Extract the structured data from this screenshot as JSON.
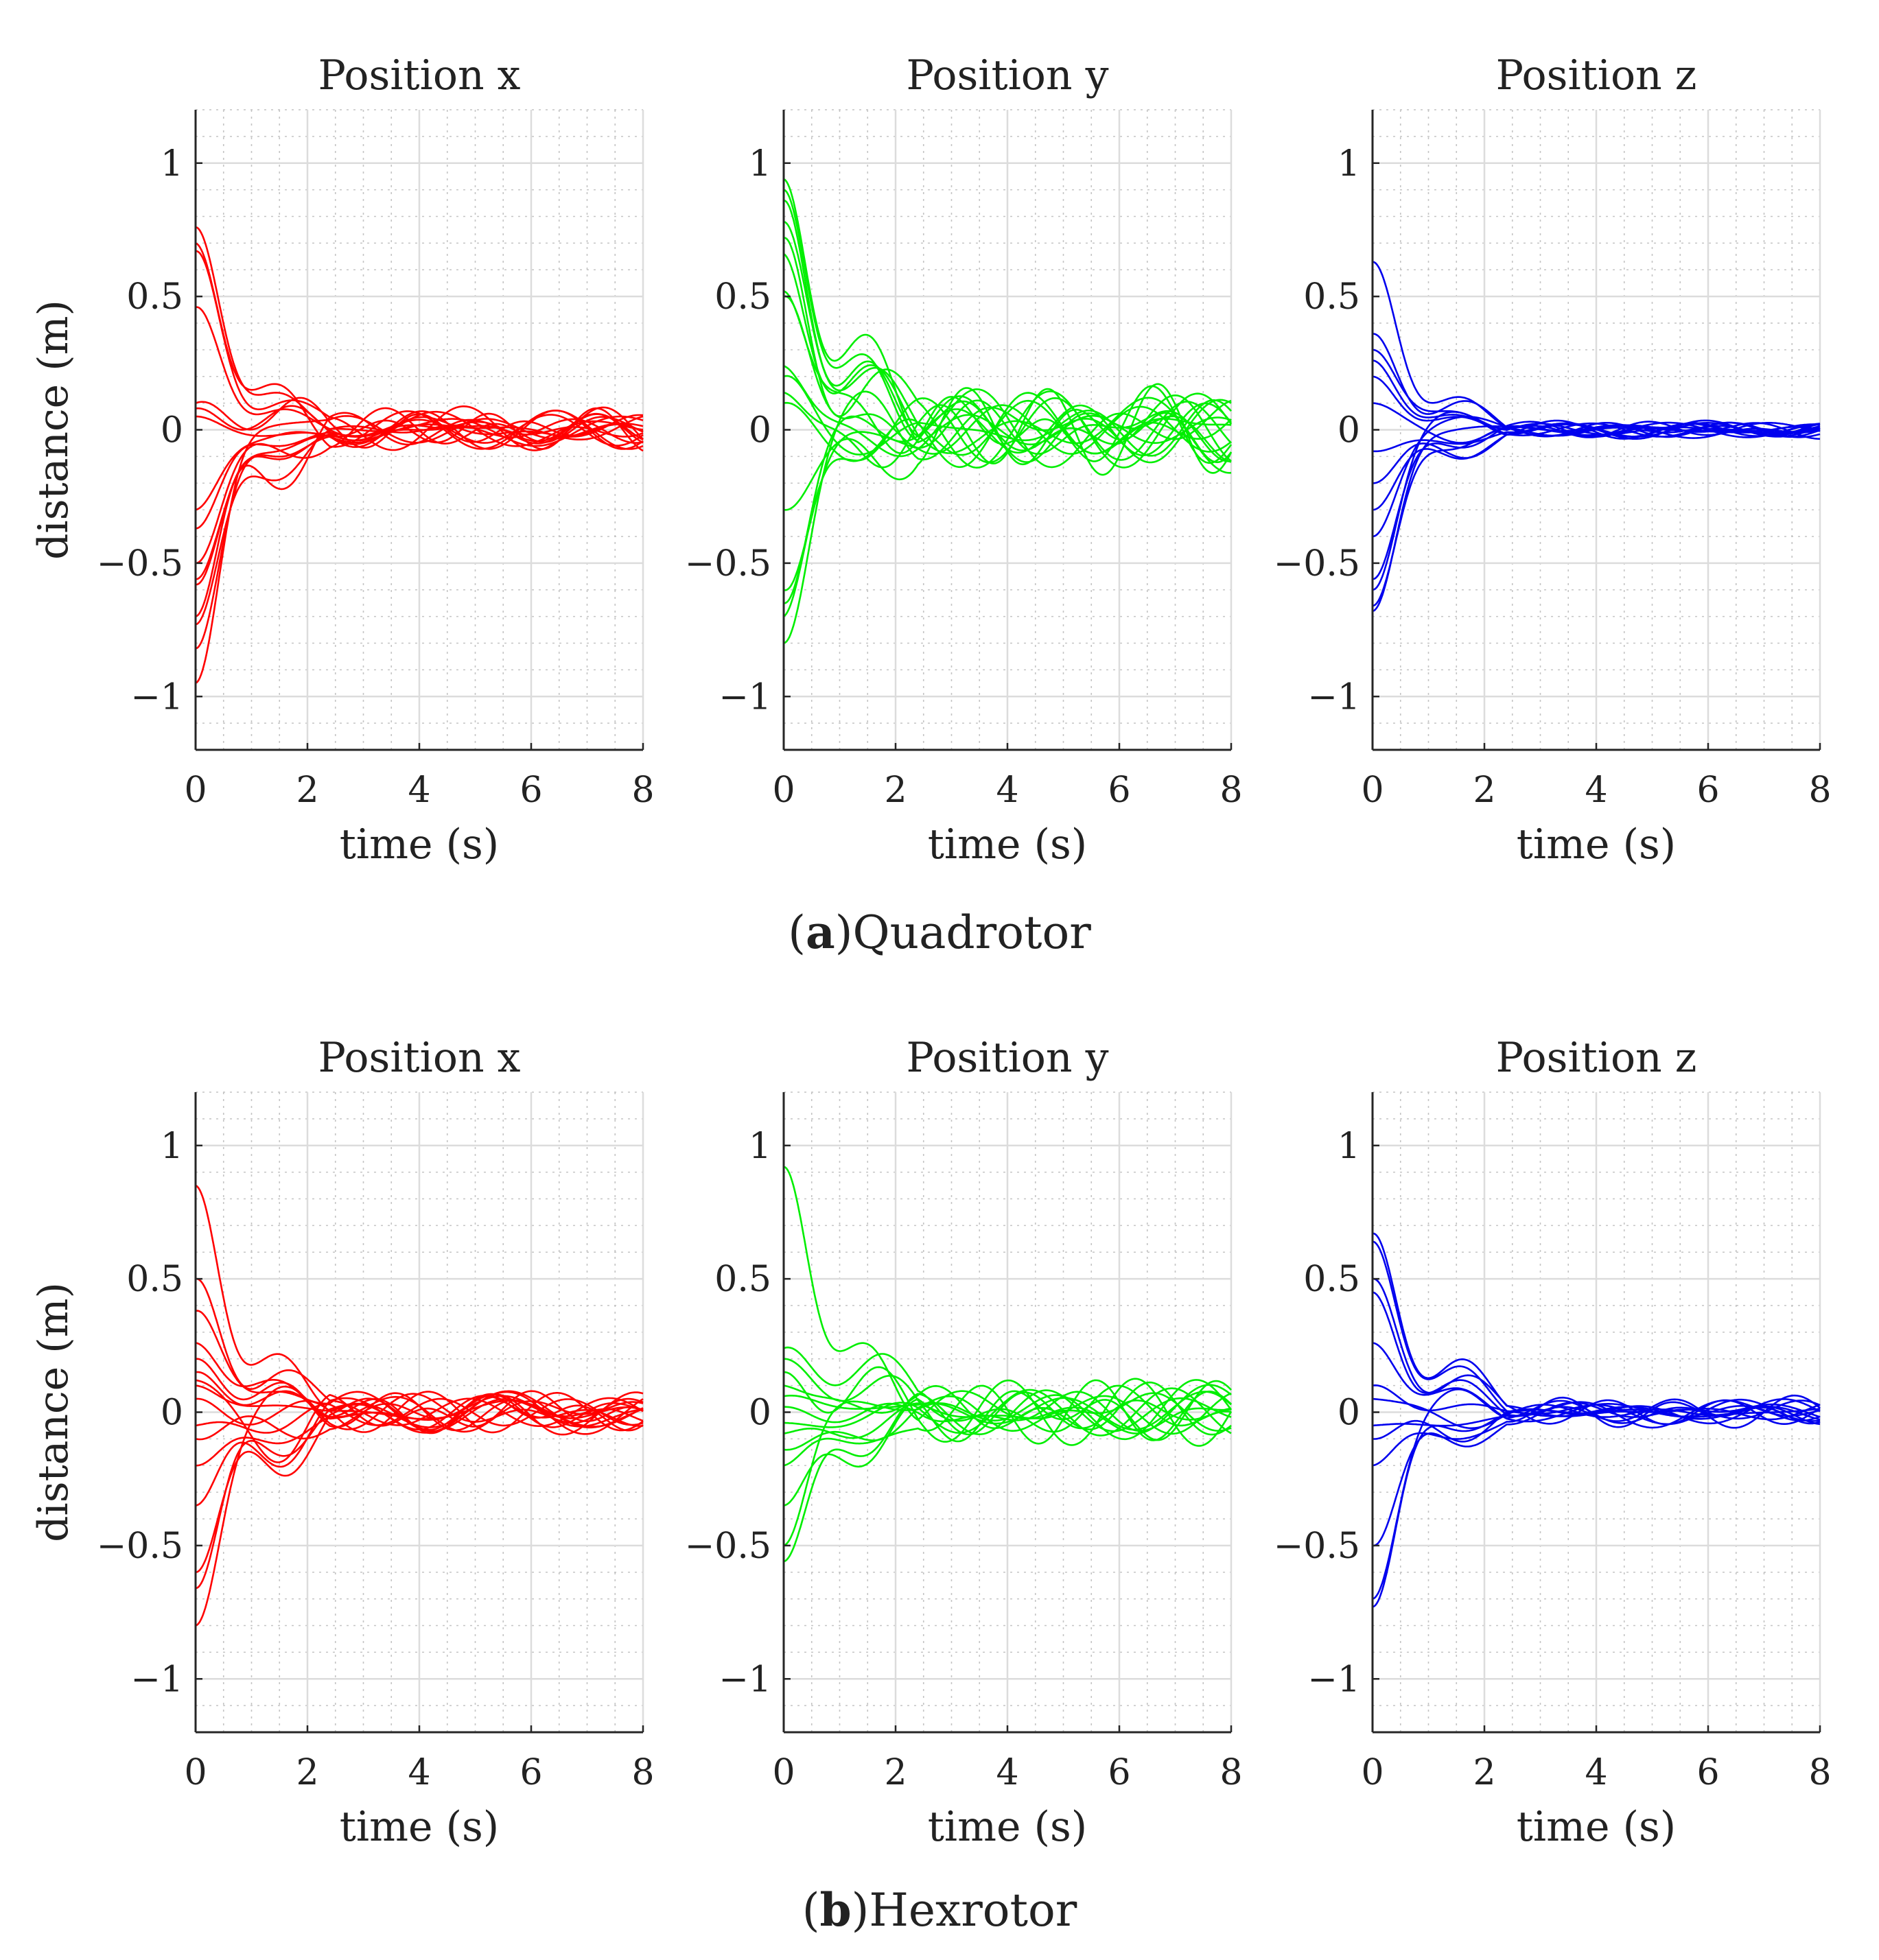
{
  "figure": {
    "captions": [
      {
        "letter": "a",
        "prefix": "(",
        "close": ")",
        "label": "Quadrotor"
      },
      {
        "letter": "b",
        "prefix": "(",
        "close": ")",
        "label": "Hexrotor"
      }
    ]
  },
  "chart_data": [
    {
      "group": "Quadrotor",
      "type": "line",
      "title": "Position x",
      "xlabel": "time (s)",
      "ylabel": "distance (m)",
      "xlim": [
        0,
        8
      ],
      "ylim": [
        -1.2,
        1.2
      ],
      "xticks": [
        0,
        2,
        4,
        6,
        8
      ],
      "xtick_labels": [
        "0",
        "2",
        "4",
        "6",
        "8"
      ],
      "yticks": [
        -1,
        -0.5,
        0,
        0.5,
        1
      ],
      "ytick_labels": [
        "−1",
        "−0.5",
        "0",
        "0.5",
        "1"
      ],
      "grid": "major and minor",
      "color": "#ff0000",
      "initial_values": [
        0.76,
        0.7,
        0.67,
        0.46,
        0.1,
        0.08,
        -0.3,
        -0.37,
        -0.5,
        -0.56,
        -0.58,
        -0.7,
        -0.73,
        -0.82,
        -0.95,
        0.05
      ],
      "overshoot_values": [
        0.18,
        0.16,
        0.14,
        0.12,
        0.1,
        0.06,
        -0.04,
        -0.08,
        -0.12,
        -0.15,
        -0.18,
        -0.2,
        -0.25,
        -0.14,
        0.08,
        -0.06
      ],
      "steady_band": 0.07
    },
    {
      "group": "Quadrotor",
      "type": "line",
      "title": "Position y",
      "xlabel": "time (s)",
      "ylabel": "",
      "xlim": [
        0,
        8
      ],
      "ylim": [
        -1.2,
        1.2
      ],
      "xticks": [
        0,
        2,
        4,
        6,
        8
      ],
      "xtick_labels": [
        "0",
        "2",
        "4",
        "6",
        "8"
      ],
      "yticks": [
        -1,
        -0.5,
        0,
        0.5,
        1
      ],
      "ytick_labels": [
        "−1",
        "−0.5",
        "0",
        "0.5",
        "1"
      ],
      "grid": "major and minor",
      "color": "#00ee00",
      "initial_values": [
        0.94,
        0.9,
        0.86,
        0.78,
        0.72,
        0.66,
        0.52,
        0.5,
        0.24,
        0.2,
        0.14,
        0.1,
        -0.3,
        -0.6,
        -0.65,
        -0.7,
        -0.8
      ],
      "overshoot_values": [
        0.4,
        0.36,
        0.3,
        0.25,
        0.2,
        0.16,
        0.1,
        0.06,
        -0.04,
        -0.08,
        -0.12,
        -0.16,
        -0.18,
        -0.1,
        0.05,
        -0.02,
        0.12
      ],
      "steady_band": 0.14
    },
    {
      "group": "Quadrotor",
      "type": "line",
      "title": "Position z",
      "xlabel": "time (s)",
      "ylabel": "",
      "xlim": [
        0,
        8
      ],
      "ylim": [
        -1.2,
        1.2
      ],
      "xticks": [
        0,
        2,
        4,
        6,
        8
      ],
      "xtick_labels": [
        "0",
        "2",
        "4",
        "6",
        "8"
      ],
      "yticks": [
        -1,
        -0.5,
        0,
        0.5,
        1
      ],
      "ytick_labels": [
        "−1",
        "−0.5",
        "0",
        "0.5",
        "1"
      ],
      "grid": "major and minor",
      "color": "#0000ee",
      "initial_values": [
        0.63,
        0.36,
        0.3,
        0.26,
        0.2,
        0.1,
        -0.08,
        -0.2,
        -0.3,
        -0.4,
        -0.56,
        -0.6,
        -0.66,
        -0.68
      ],
      "overshoot_values": [
        0.15,
        0.12,
        0.1,
        0.06,
        0.04,
        -0.04,
        -0.08,
        -0.12,
        -0.14,
        0.05,
        -0.06,
        0.08,
        -0.1,
        0.02
      ],
      "steady_band": 0.03
    },
    {
      "group": "Hexrotor",
      "type": "line",
      "title": "Position x",
      "xlabel": "time (s)",
      "ylabel": "distance (m)",
      "xlim": [
        0,
        8
      ],
      "ylim": [
        -1.2,
        1.2
      ],
      "xticks": [
        0,
        2,
        4,
        6,
        8
      ],
      "xtick_labels": [
        "0",
        "2",
        "4",
        "6",
        "8"
      ],
      "yticks": [
        -1,
        -0.5,
        0,
        0.5,
        1
      ],
      "ytick_labels": [
        "−1",
        "−0.5",
        "0",
        "0.5",
        "1"
      ],
      "grid": "major and minor",
      "color": "#ff0000",
      "initial_values": [
        0.85,
        0.5,
        0.38,
        0.26,
        0.2,
        0.15,
        0.1,
        0.05,
        -0.05,
        -0.1,
        -0.2,
        -0.35,
        -0.6,
        -0.66,
        -0.8,
        0.12
      ],
      "overshoot_values": [
        0.24,
        0.2,
        0.16,
        0.12,
        0.1,
        0.06,
        0.02,
        -0.04,
        -0.08,
        -0.12,
        -0.16,
        -0.22,
        -0.28,
        -0.18,
        0.08,
        -0.2
      ],
      "steady_band": 0.07
    },
    {
      "group": "Hexrotor",
      "type": "line",
      "title": "Position y",
      "xlabel": "time (s)",
      "ylabel": "",
      "xlim": [
        0,
        8
      ],
      "ylim": [
        -1.2,
        1.2
      ],
      "xticks": [
        0,
        2,
        4,
        6,
        8
      ],
      "xtick_labels": [
        "0",
        "2",
        "4",
        "6",
        "8"
      ],
      "yticks": [
        -1,
        -0.5,
        0,
        0.5,
        1
      ],
      "ytick_labels": [
        "−1",
        "−0.5",
        "0",
        "0.5",
        "1"
      ],
      "grid": "major and minor",
      "color": "#00ee00",
      "initial_values": [
        0.92,
        0.24,
        0.2,
        0.15,
        0.1,
        0.06,
        0.02,
        -0.04,
        -0.08,
        -0.14,
        -0.2,
        -0.35,
        -0.5,
        -0.56
      ],
      "overshoot_values": [
        0.36,
        0.3,
        0.12,
        0.1,
        0.08,
        0.05,
        -0.04,
        -0.06,
        -0.1,
        -0.14,
        -0.18,
        -0.24,
        0.1,
        -0.16
      ],
      "steady_band": 0.1
    },
    {
      "group": "Hexrotor",
      "type": "line",
      "title": "Position z",
      "xlabel": "time (s)",
      "ylabel": "",
      "xlim": [
        0,
        8
      ],
      "ylim": [
        -1.2,
        1.2
      ],
      "xticks": [
        0,
        2,
        4,
        6,
        8
      ],
      "xtick_labels": [
        "0",
        "2",
        "4",
        "6",
        "8"
      ],
      "yticks": [
        -1,
        -0.5,
        0,
        0.5,
        1
      ],
      "ytick_labels": [
        "−1",
        "−0.5",
        "0",
        "0.5",
        "1"
      ],
      "grid": "major and minor",
      "color": "#0000ee",
      "initial_values": [
        0.67,
        0.64,
        0.5,
        0.45,
        0.26,
        0.1,
        0.05,
        -0.05,
        -0.1,
        -0.2,
        -0.5,
        -0.7,
        -0.73
      ],
      "overshoot_values": [
        0.25,
        0.2,
        0.16,
        0.12,
        0.08,
        0.04,
        -0.04,
        -0.08,
        -0.12,
        -0.14,
        -0.18,
        0.1,
        -0.06
      ],
      "steady_band": 0.05
    }
  ]
}
